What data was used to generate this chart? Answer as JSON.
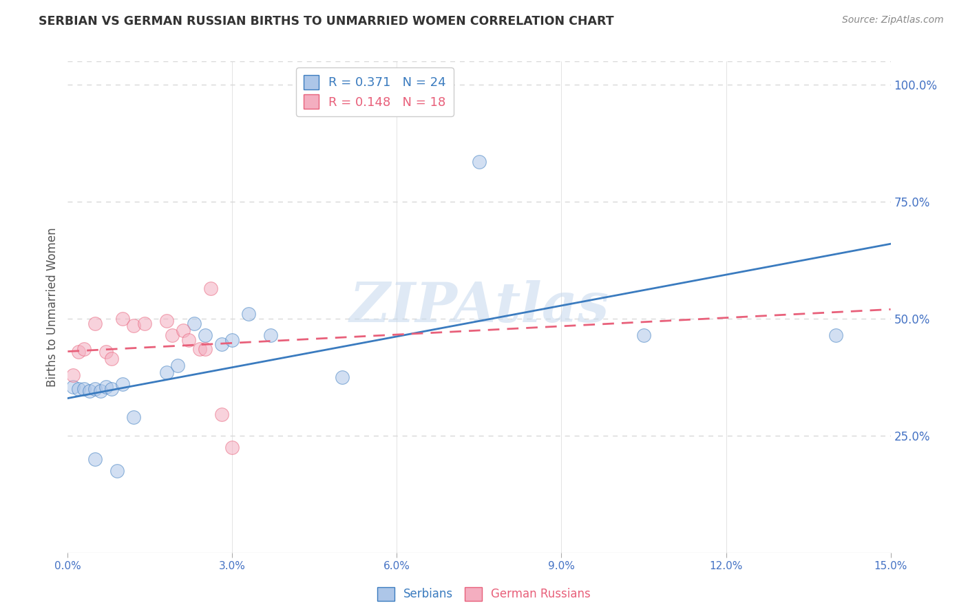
{
  "title": "SERBIAN VS GERMAN RUSSIAN BIRTHS TO UNMARRIED WOMEN CORRELATION CHART",
  "source": "Source: ZipAtlas.com",
  "xlabel": "",
  "ylabel": "Births to Unmarried Women",
  "xlim": [
    0.0,
    0.15
  ],
  "ylim": [
    0.0,
    1.05
  ],
  "yticks_right": [
    1.0,
    0.75,
    0.5,
    0.25
  ],
  "ytick_labels_right": [
    "100.0%",
    "75.0%",
    "50.0%",
    "25.0%"
  ],
  "xticks": [
    0.0,
    0.03,
    0.06,
    0.09,
    0.12,
    0.15
  ],
  "xtick_labels": [
    "0.0%",
    "3.0%",
    "6.0%",
    "9.0%",
    "12.0%",
    "15.0%"
  ],
  "watermark": "ZIPAtlas",
  "legend_r1": "R = 0.371   N = 24",
  "legend_r2": "R = 0.148   N = 18",
  "serbian_x": [
    0.001,
    0.002,
    0.003,
    0.004,
    0.005,
    0.006,
    0.007,
    0.008,
    0.01,
    0.012,
    0.018,
    0.02,
    0.023,
    0.025,
    0.028,
    0.03,
    0.033,
    0.037,
    0.05,
    0.075,
    0.105,
    0.14,
    0.005,
    0.009
  ],
  "serbian_y": [
    0.355,
    0.35,
    0.35,
    0.345,
    0.35,
    0.345,
    0.355,
    0.35,
    0.36,
    0.29,
    0.385,
    0.4,
    0.49,
    0.465,
    0.445,
    0.455,
    0.51,
    0.465,
    0.375,
    0.835,
    0.465,
    0.465,
    0.2,
    0.175
  ],
  "german_russian_x": [
    0.001,
    0.002,
    0.003,
    0.005,
    0.007,
    0.008,
    0.01,
    0.012,
    0.014,
    0.018,
    0.019,
    0.021,
    0.022,
    0.024,
    0.025,
    0.026,
    0.028,
    0.03
  ],
  "german_russian_y": [
    0.38,
    0.43,
    0.435,
    0.49,
    0.43,
    0.415,
    0.5,
    0.485,
    0.49,
    0.495,
    0.465,
    0.475,
    0.455,
    0.435,
    0.435,
    0.565,
    0.295,
    0.225
  ],
  "serbian_color": "#adc6e8",
  "german_russian_color": "#f4aec0",
  "serbian_line_color": "#3a7bbf",
  "german_russian_line_color": "#e8607a",
  "background_color": "#ffffff",
  "grid_color": "#d8d8d8",
  "title_color": "#333333",
  "axis_color": "#4472c4",
  "right_axis_color": "#4472c4",
  "marker_size": 200,
  "marker_alpha": 0.55,
  "serbian_line_slope": 2.2,
  "serbian_line_intercept": 0.33,
  "german_russian_line_slope": 0.6,
  "german_russian_line_intercept": 0.43
}
